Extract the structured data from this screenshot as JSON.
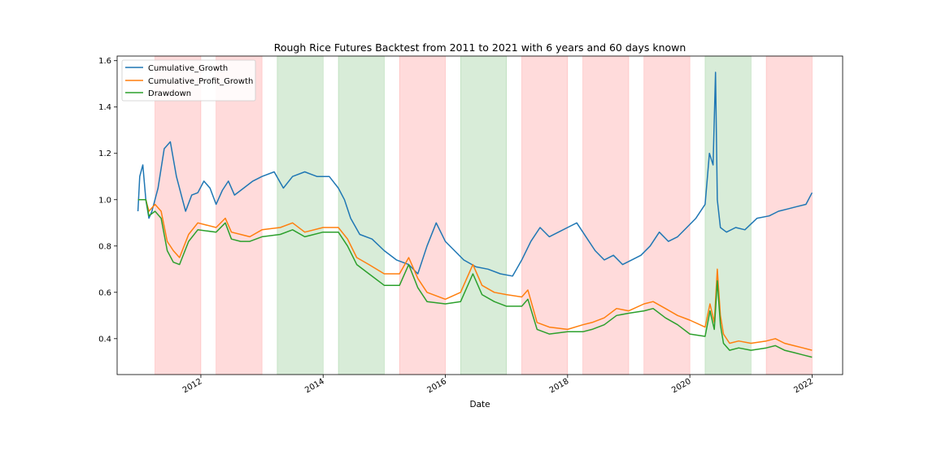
{
  "chart_data": {
    "type": "line",
    "title": "Rough Rice Futures Backtest from 2011 to 2021 with 6 years and 60 days known",
    "xlabel": "Date",
    "ylabel": "",
    "xlim": [
      2010.63,
      2022.5
    ],
    "ylim": [
      0.245,
      1.62
    ],
    "x_ticks": [
      2012,
      2014,
      2016,
      2018,
      2020,
      2022
    ],
    "x_tick_labels": [
      "2012",
      "2014",
      "2016",
      "2018",
      "2020",
      "2022"
    ],
    "y_ticks": [
      0.4,
      0.6,
      0.8,
      1.0,
      1.2,
      1.4,
      1.6
    ],
    "y_tick_labels": [
      "0.4",
      "0.6",
      "0.8",
      "1.0",
      "1.2",
      "1.4",
      "1.6"
    ],
    "grid": false,
    "legend_position": "upper-left",
    "shaded_regions": [
      {
        "start": 2011.25,
        "end": 2012.0,
        "color": "#ff9999"
      },
      {
        "start": 2012.25,
        "end": 2013.0,
        "color": "#ff9999"
      },
      {
        "start": 2013.25,
        "end": 2014.0,
        "color": "#8fc98f"
      },
      {
        "start": 2014.25,
        "end": 2015.0,
        "color": "#8fc98f"
      },
      {
        "start": 2015.25,
        "end": 2016.0,
        "color": "#ff9999"
      },
      {
        "start": 2016.25,
        "end": 2017.0,
        "color": "#8fc98f"
      },
      {
        "start": 2017.25,
        "end": 2018.0,
        "color": "#ff9999"
      },
      {
        "start": 2018.25,
        "end": 2019.0,
        "color": "#ff9999"
      },
      {
        "start": 2019.25,
        "end": 2020.0,
        "color": "#ff9999"
      },
      {
        "start": 2020.25,
        "end": 2021.0,
        "color": "#8fc98f"
      },
      {
        "start": 2021.25,
        "end": 2022.0,
        "color": "#ff9999"
      }
    ],
    "series": [
      {
        "name": "Cumulative_Growth",
        "color": "#1f77b4",
        "x": [
          2010.97,
          2011.0,
          2011.05,
          2011.1,
          2011.15,
          2011.2,
          2011.3,
          2011.4,
          2011.5,
          2011.6,
          2011.7,
          2011.75,
          2011.85,
          2011.95,
          2012.05,
          2012.15,
          2012.25,
          2012.35,
          2012.45,
          2012.55,
          2012.7,
          2012.85,
          2013.0,
          2013.2,
          2013.35,
          2013.5,
          2013.7,
          2013.9,
          2014.1,
          2014.25,
          2014.35,
          2014.45,
          2014.6,
          2014.8,
          2015.0,
          2015.2,
          2015.4,
          2015.55,
          2015.7,
          2015.85,
          2016.0,
          2016.15,
          2016.3,
          2016.5,
          2016.7,
          2016.9,
          2017.1,
          2017.25,
          2017.4,
          2017.55,
          2017.7,
          2017.85,
          2018.0,
          2018.15,
          2018.3,
          2018.45,
          2018.6,
          2018.75,
          2018.9,
          2019.05,
          2019.2,
          2019.35,
          2019.5,
          2019.65,
          2019.8,
          2019.95,
          2020.1,
          2020.25,
          2020.32,
          2020.38,
          2020.42,
          2020.45,
          2020.5,
          2020.6,
          2020.75,
          2020.9,
          2021.1,
          2021.3,
          2021.45,
          2021.6,
          2021.75,
          2021.9,
          2022.0
        ],
        "y": [
          0.95,
          1.1,
          1.15,
          1.0,
          0.92,
          0.95,
          1.05,
          1.22,
          1.25,
          1.1,
          1.0,
          0.95,
          1.02,
          1.03,
          1.08,
          1.05,
          0.98,
          1.04,
          1.08,
          1.02,
          1.05,
          1.08,
          1.1,
          1.12,
          1.05,
          1.1,
          1.12,
          1.1,
          1.1,
          1.05,
          1.0,
          0.92,
          0.85,
          0.83,
          0.78,
          0.74,
          0.72,
          0.68,
          0.8,
          0.9,
          0.82,
          0.78,
          0.74,
          0.71,
          0.7,
          0.68,
          0.67,
          0.74,
          0.82,
          0.88,
          0.84,
          0.86,
          0.88,
          0.9,
          0.84,
          0.78,
          0.74,
          0.76,
          0.72,
          0.74,
          0.76,
          0.8,
          0.86,
          0.82,
          0.84,
          0.88,
          0.92,
          0.98,
          1.2,
          1.15,
          1.55,
          1.0,
          0.88,
          0.86,
          0.88,
          0.87,
          0.92,
          0.93,
          0.95,
          0.96,
          0.97,
          0.98,
          1.03
        ]
      },
      {
        "name": "Cumulative_Profit_Growth",
        "color": "#ff7f0e",
        "x": [
          2010.97,
          2011.1,
          2011.15,
          2011.25,
          2011.35,
          2011.45,
          2011.55,
          2011.65,
          2011.8,
          2011.95,
          2012.25,
          2012.4,
          2012.5,
          2012.65,
          2012.8,
          2013.0,
          2013.3,
          2013.5,
          2013.7,
          2014.0,
          2014.25,
          2014.4,
          2014.55,
          2014.75,
          2015.0,
          2015.25,
          2015.4,
          2015.55,
          2015.7,
          2016.0,
          2016.25,
          2016.45,
          2016.6,
          2016.8,
          2017.0,
          2017.25,
          2017.35,
          2017.5,
          2017.7,
          2018.0,
          2018.25,
          2018.4,
          2018.6,
          2018.8,
          2019.0,
          2019.25,
          2019.4,
          2019.6,
          2019.8,
          2020.0,
          2020.25,
          2020.33,
          2020.4,
          2020.45,
          2020.5,
          2020.55,
          2020.65,
          2020.8,
          2021.0,
          2021.25,
          2021.4,
          2021.55,
          2021.7,
          2021.85,
          2022.0
        ],
        "y": [
          1.0,
          1.0,
          0.95,
          0.98,
          0.95,
          0.82,
          0.78,
          0.75,
          0.85,
          0.9,
          0.88,
          0.92,
          0.86,
          0.85,
          0.84,
          0.87,
          0.88,
          0.9,
          0.86,
          0.88,
          0.88,
          0.83,
          0.75,
          0.72,
          0.68,
          0.68,
          0.75,
          0.66,
          0.6,
          0.57,
          0.6,
          0.72,
          0.63,
          0.6,
          0.59,
          0.58,
          0.61,
          0.47,
          0.45,
          0.44,
          0.46,
          0.47,
          0.49,
          0.53,
          0.52,
          0.55,
          0.56,
          0.53,
          0.5,
          0.48,
          0.45,
          0.55,
          0.47,
          0.7,
          0.5,
          0.42,
          0.38,
          0.39,
          0.38,
          0.39,
          0.4,
          0.38,
          0.37,
          0.36,
          0.35
        ]
      },
      {
        "name": "Drawdown",
        "color": "#2ca02c",
        "x": [
          2010.97,
          2011.1,
          2011.15,
          2011.25,
          2011.35,
          2011.45,
          2011.55,
          2011.65,
          2011.8,
          2011.95,
          2012.25,
          2012.4,
          2012.5,
          2012.65,
          2012.8,
          2013.0,
          2013.3,
          2013.5,
          2013.7,
          2014.0,
          2014.25,
          2014.4,
          2014.55,
          2014.75,
          2015.0,
          2015.25,
          2015.4,
          2015.55,
          2015.7,
          2016.0,
          2016.25,
          2016.45,
          2016.6,
          2016.8,
          2017.0,
          2017.25,
          2017.35,
          2017.5,
          2017.7,
          2018.0,
          2018.25,
          2018.4,
          2018.6,
          2018.8,
          2019.0,
          2019.25,
          2019.4,
          2019.6,
          2019.8,
          2020.0,
          2020.25,
          2020.33,
          2020.4,
          2020.45,
          2020.5,
          2020.55,
          2020.65,
          2020.8,
          2021.0,
          2021.25,
          2021.4,
          2021.55,
          2021.7,
          2021.85,
          2022.0
        ],
        "y": [
          1.0,
          1.0,
          0.93,
          0.95,
          0.92,
          0.78,
          0.73,
          0.72,
          0.82,
          0.87,
          0.86,
          0.9,
          0.83,
          0.82,
          0.82,
          0.84,
          0.85,
          0.87,
          0.84,
          0.86,
          0.86,
          0.8,
          0.72,
          0.68,
          0.63,
          0.63,
          0.72,
          0.62,
          0.56,
          0.55,
          0.56,
          0.68,
          0.59,
          0.56,
          0.54,
          0.54,
          0.57,
          0.44,
          0.42,
          0.43,
          0.43,
          0.44,
          0.46,
          0.5,
          0.51,
          0.52,
          0.53,
          0.49,
          0.46,
          0.42,
          0.41,
          0.52,
          0.44,
          0.65,
          0.46,
          0.38,
          0.35,
          0.36,
          0.35,
          0.36,
          0.37,
          0.35,
          0.34,
          0.33,
          0.32
        ]
      }
    ]
  }
}
